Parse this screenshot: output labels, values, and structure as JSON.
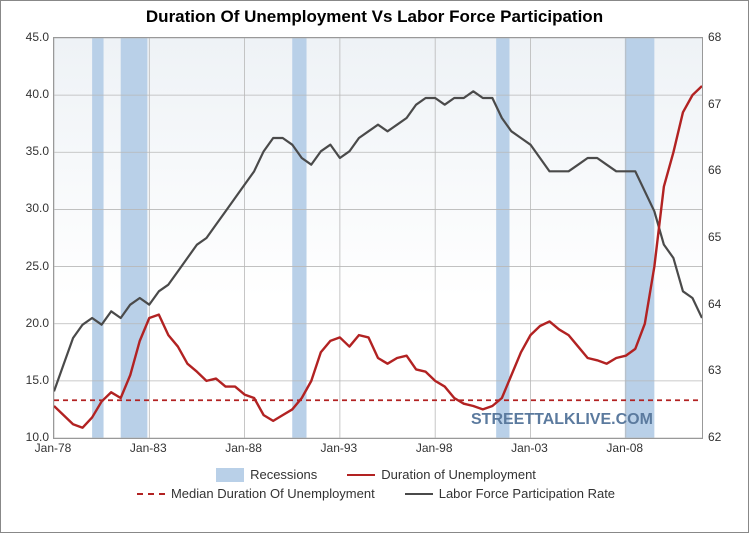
{
  "title": "Duration Of Unemployment Vs Labor Force Participation",
  "watermark": "STREETTALKLIVE.COM",
  "chart": {
    "type": "line",
    "background_gradient": [
      "#eef2f6",
      "#ffffff"
    ],
    "grid_color": "#b8b8b8",
    "plot_border_color": "#999999",
    "left_axis": {
      "label": "",
      "min": 10.0,
      "max": 45.0,
      "tick_step": 5.0,
      "ticks": [
        "10.0",
        "15.0",
        "20.0",
        "25.0",
        "30.0",
        "35.0",
        "40.0",
        "45.0"
      ],
      "fontsize": 12
    },
    "right_axis": {
      "label": "",
      "min": 62,
      "max": 68,
      "tick_step": 1,
      "ticks": [
        "62",
        "63",
        "64",
        "65",
        "66",
        "67",
        "68"
      ],
      "fontsize": 12
    },
    "x_axis": {
      "min_year": 1978,
      "max_year": 2012,
      "ticks": [
        "Jan-78",
        "Jan-83",
        "Jan-88",
        "Jan-93",
        "Jan-98",
        "Jan-03",
        "Jan-08"
      ],
      "tick_years": [
        1978,
        1983,
        1988,
        1993,
        1998,
        2003,
        2008
      ],
      "fontsize": 12
    },
    "recessions": {
      "label": "Recessions",
      "color": "#b9d0e8",
      "periods": [
        {
          "start": 1980.0,
          "end": 1980.6
        },
        {
          "start": 1981.5,
          "end": 1982.9
        },
        {
          "start": 1990.5,
          "end": 1991.25
        },
        {
          "start": 2001.2,
          "end": 2001.9
        },
        {
          "start": 2007.95,
          "end": 2009.5
        }
      ]
    },
    "median_line": {
      "label": "Median Duration Of Unemployment",
      "color": "#b22222",
      "dash": "5,4",
      "width": 1.8,
      "value": 13.3
    },
    "series_duration": {
      "label": "Duration of Unemployment",
      "color": "#b22222",
      "width": 2.4,
      "points": [
        [
          1978.0,
          12.8
        ],
        [
          1978.5,
          12.0
        ],
        [
          1979.0,
          11.2
        ],
        [
          1979.5,
          10.9
        ],
        [
          1980.0,
          11.8
        ],
        [
          1980.5,
          13.2
        ],
        [
          1981.0,
          14.0
        ],
        [
          1981.5,
          13.5
        ],
        [
          1982.0,
          15.5
        ],
        [
          1982.5,
          18.5
        ],
        [
          1983.0,
          20.5
        ],
        [
          1983.5,
          20.8
        ],
        [
          1984.0,
          19.0
        ],
        [
          1984.5,
          18.0
        ],
        [
          1985.0,
          16.5
        ],
        [
          1985.5,
          15.8
        ],
        [
          1986.0,
          15.0
        ],
        [
          1986.5,
          15.2
        ],
        [
          1987.0,
          14.5
        ],
        [
          1987.5,
          14.5
        ],
        [
          1988.0,
          13.8
        ],
        [
          1988.5,
          13.5
        ],
        [
          1989.0,
          12.0
        ],
        [
          1989.5,
          11.5
        ],
        [
          1990.0,
          12.0
        ],
        [
          1990.5,
          12.5
        ],
        [
          1991.0,
          13.5
        ],
        [
          1991.5,
          15.0
        ],
        [
          1992.0,
          17.5
        ],
        [
          1992.5,
          18.5
        ],
        [
          1993.0,
          18.8
        ],
        [
          1993.5,
          18.0
        ],
        [
          1994.0,
          19.0
        ],
        [
          1994.5,
          18.8
        ],
        [
          1995.0,
          17.0
        ],
        [
          1995.5,
          16.5
        ],
        [
          1996.0,
          17.0
        ],
        [
          1996.5,
          17.2
        ],
        [
          1997.0,
          16.0
        ],
        [
          1997.5,
          15.8
        ],
        [
          1998.0,
          15.0
        ],
        [
          1998.5,
          14.5
        ],
        [
          1999.0,
          13.5
        ],
        [
          1999.5,
          13.0
        ],
        [
          2000.0,
          12.8
        ],
        [
          2000.5,
          12.5
        ],
        [
          2001.0,
          12.8
        ],
        [
          2001.5,
          13.5
        ],
        [
          2002.0,
          15.5
        ],
        [
          2002.5,
          17.5
        ],
        [
          2003.0,
          19.0
        ],
        [
          2003.5,
          19.8
        ],
        [
          2004.0,
          20.2
        ],
        [
          2004.5,
          19.5
        ],
        [
          2005.0,
          19.0
        ],
        [
          2005.5,
          18.0
        ],
        [
          2006.0,
          17.0
        ],
        [
          2006.5,
          16.8
        ],
        [
          2007.0,
          16.5
        ],
        [
          2007.5,
          17.0
        ],
        [
          2008.0,
          17.2
        ],
        [
          2008.5,
          17.8
        ],
        [
          2009.0,
          20.0
        ],
        [
          2009.5,
          25.0
        ],
        [
          2010.0,
          32.0
        ],
        [
          2010.5,
          35.0
        ],
        [
          2011.0,
          38.5
        ],
        [
          2011.5,
          40.0
        ],
        [
          2012.0,
          40.8
        ]
      ]
    },
    "series_lfpr": {
      "label": "Labor Force Participation Rate",
      "color": "#4a4a4a",
      "width": 2.2,
      "points": [
        [
          1978.0,
          62.7
        ],
        [
          1978.5,
          63.1
        ],
        [
          1979.0,
          63.5
        ],
        [
          1979.5,
          63.7
        ],
        [
          1980.0,
          63.8
        ],
        [
          1980.5,
          63.7
        ],
        [
          1981.0,
          63.9
        ],
        [
          1981.5,
          63.8
        ],
        [
          1982.0,
          64.0
        ],
        [
          1982.5,
          64.1
        ],
        [
          1983.0,
          64.0
        ],
        [
          1983.5,
          64.2
        ],
        [
          1984.0,
          64.3
        ],
        [
          1984.5,
          64.5
        ],
        [
          1985.0,
          64.7
        ],
        [
          1985.5,
          64.9
        ],
        [
          1986.0,
          65.0
        ],
        [
          1986.5,
          65.2
        ],
        [
          1987.0,
          65.4
        ],
        [
          1987.5,
          65.6
        ],
        [
          1988.0,
          65.8
        ],
        [
          1988.5,
          66.0
        ],
        [
          1989.0,
          66.3
        ],
        [
          1989.5,
          66.5
        ],
        [
          1990.0,
          66.5
        ],
        [
          1990.5,
          66.4
        ],
        [
          1991.0,
          66.2
        ],
        [
          1991.5,
          66.1
        ],
        [
          1992.0,
          66.3
        ],
        [
          1992.5,
          66.4
        ],
        [
          1993.0,
          66.2
        ],
        [
          1993.5,
          66.3
        ],
        [
          1994.0,
          66.5
        ],
        [
          1994.5,
          66.6
        ],
        [
          1995.0,
          66.7
        ],
        [
          1995.5,
          66.6
        ],
        [
          1996.0,
          66.7
        ],
        [
          1996.5,
          66.8
        ],
        [
          1997.0,
          67.0
        ],
        [
          1997.5,
          67.1
        ],
        [
          1998.0,
          67.1
        ],
        [
          1998.5,
          67.0
        ],
        [
          1999.0,
          67.1
        ],
        [
          1999.5,
          67.1
        ],
        [
          2000.0,
          67.2
        ],
        [
          2000.5,
          67.1
        ],
        [
          2001.0,
          67.1
        ],
        [
          2001.5,
          66.8
        ],
        [
          2002.0,
          66.6
        ],
        [
          2002.5,
          66.5
        ],
        [
          2003.0,
          66.4
        ],
        [
          2003.5,
          66.2
        ],
        [
          2004.0,
          66.0
        ],
        [
          2004.5,
          66.0
        ],
        [
          2005.0,
          66.0
        ],
        [
          2005.5,
          66.1
        ],
        [
          2006.0,
          66.2
        ],
        [
          2006.5,
          66.2
        ],
        [
          2007.0,
          66.1
        ],
        [
          2007.5,
          66.0
        ],
        [
          2008.0,
          66.0
        ],
        [
          2008.5,
          66.0
        ],
        [
          2009.0,
          65.7
        ],
        [
          2009.5,
          65.4
        ],
        [
          2010.0,
          64.9
        ],
        [
          2010.5,
          64.7
        ],
        [
          2011.0,
          64.2
        ],
        [
          2011.5,
          64.1
        ],
        [
          2012.0,
          63.8
        ]
      ]
    }
  },
  "legend": {
    "row1": [
      {
        "key": "recessions"
      },
      {
        "key": "series_duration"
      }
    ],
    "row2": [
      {
        "key": "median_line"
      },
      {
        "key": "series_lfpr"
      }
    ]
  }
}
